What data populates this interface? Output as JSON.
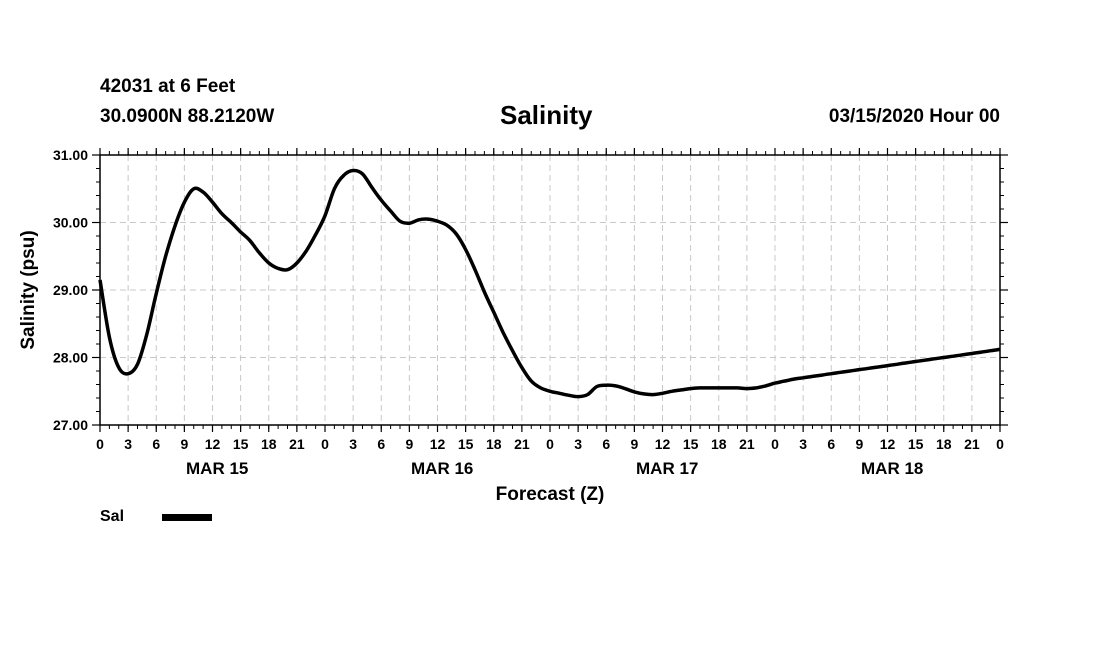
{
  "header": {
    "station_line1": "42031 at 6 Feet",
    "station_line2": "30.0900N 88.2120W",
    "run_time": "03/15/2020 Hour 00"
  },
  "chart_data": {
    "type": "line",
    "title": "Salinity",
    "xlabel": "Forecast (Z)",
    "ylabel": "Salinity (psu)",
    "x_unit": "forecast hour from 03/15/2020 00Z",
    "xlim": [
      0,
      96
    ],
    "ylim": [
      27.0,
      31.0
    ],
    "y_ticks": [
      "27.00",
      "28.00",
      "29.00",
      "30.00",
      "31.00"
    ],
    "x_tick_labels": [
      "0",
      "3",
      "6",
      "9",
      "12",
      "15",
      "18",
      "21",
      "0",
      "3",
      "6",
      "9",
      "12",
      "15",
      "18",
      "21",
      "0",
      "3",
      "6",
      "9",
      "12",
      "15",
      "18",
      "21",
      "0",
      "3",
      "6",
      "9",
      "12",
      "15",
      "18",
      "21",
      "0"
    ],
    "day_labels": [
      "MAR 15",
      "MAR 16",
      "MAR 17",
      "MAR 18"
    ],
    "grid": true,
    "legend_position": "bottom-left",
    "series": [
      {
        "name": "Sal",
        "color": "#000000",
        "x": [
          0,
          1,
          2,
          3,
          4,
          5,
          6,
          7,
          8,
          9,
          10,
          11,
          12,
          13,
          14,
          15,
          16,
          17,
          18,
          19,
          20,
          21,
          22,
          23,
          24,
          25,
          26,
          27,
          28,
          29,
          30,
          31,
          32,
          33,
          34,
          35,
          36,
          37,
          38,
          39,
          40,
          41,
          42,
          43,
          44,
          45,
          46,
          47,
          48,
          49,
          50,
          51,
          52,
          53,
          54,
          55,
          56,
          57,
          58,
          59,
          60,
          61,
          62,
          63,
          64,
          65,
          66,
          67,
          68,
          69,
          70,
          71,
          72,
          73,
          74,
          75,
          76,
          77,
          78,
          79,
          80,
          81,
          82,
          83,
          84,
          85,
          86,
          87,
          88,
          89,
          90,
          91,
          92,
          93,
          94,
          95,
          96
        ],
        "y": [
          29.15,
          28.3,
          27.85,
          27.76,
          27.9,
          28.35,
          28.95,
          29.5,
          29.95,
          30.3,
          30.5,
          30.45,
          30.3,
          30.13,
          30.0,
          29.86,
          29.73,
          29.55,
          29.4,
          29.32,
          29.3,
          29.4,
          29.58,
          29.82,
          30.1,
          30.5,
          30.7,
          30.77,
          30.72,
          30.52,
          30.33,
          30.17,
          30.02,
          29.99,
          30.04,
          30.05,
          30.02,
          29.96,
          29.83,
          29.6,
          29.3,
          28.97,
          28.67,
          28.37,
          28.1,
          27.85,
          27.65,
          27.55,
          27.5,
          27.47,
          27.44,
          27.42,
          27.45,
          27.57,
          27.59,
          27.58,
          27.54,
          27.49,
          27.46,
          27.45,
          27.47,
          27.5,
          27.52,
          27.54,
          27.55,
          27.55,
          27.55,
          27.55,
          27.55,
          27.54,
          27.55,
          27.58,
          27.62,
          27.65,
          27.68,
          27.7,
          27.72,
          27.74,
          27.76,
          27.78,
          27.8,
          27.82,
          27.84,
          27.86,
          27.88,
          27.9,
          27.92,
          27.94,
          27.96,
          27.98,
          28.0,
          28.02,
          28.04,
          28.06,
          28.08,
          28.1,
          28.12
        ]
      }
    ]
  }
}
